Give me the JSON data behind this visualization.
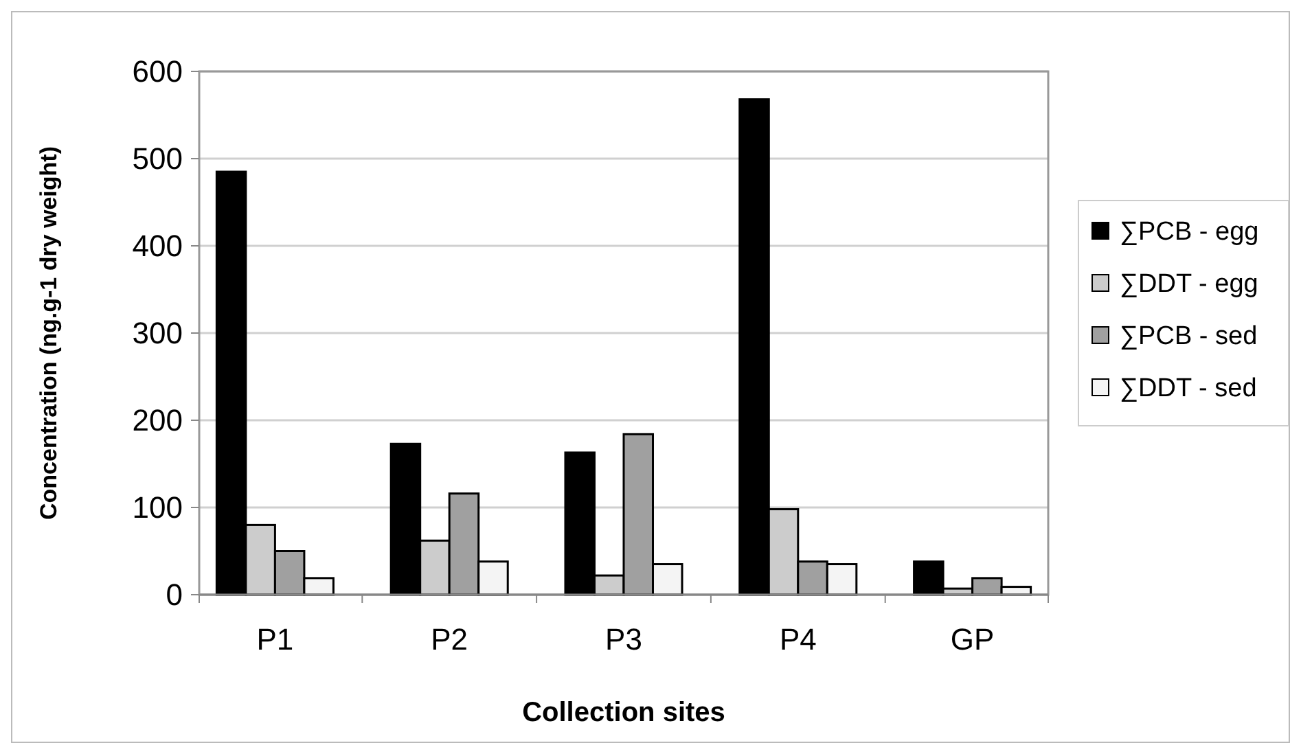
{
  "chart_data": {
    "type": "bar",
    "xlabel": "Collection sites",
    "ylabel": "Concentration (ng.g-1 dry weight)",
    "categories": [
      "P1",
      "P2",
      "P3",
      "P4",
      "GP"
    ],
    "series": [
      {
        "name": "∑PCB - egg",
        "color": "#000000",
        "values": [
          485,
          173,
          163,
          568,
          38
        ]
      },
      {
        "name": "∑DDT - egg",
        "color": "#cccccc",
        "values": [
          80,
          62,
          22,
          98,
          7
        ]
      },
      {
        "name": "∑PCB - sed",
        "color": "#a0a0a0",
        "values": [
          50,
          116,
          184,
          38,
          19
        ]
      },
      {
        "name": "∑DDT - sed",
        "color": "#f4f4f4",
        "values": [
          19,
          38,
          35,
          35,
          9
        ]
      }
    ],
    "ylim": [
      0,
      600
    ],
    "yticks": [
      0,
      100,
      200,
      300,
      400,
      500,
      600
    ],
    "grid": "y",
    "legend": "right"
  }
}
